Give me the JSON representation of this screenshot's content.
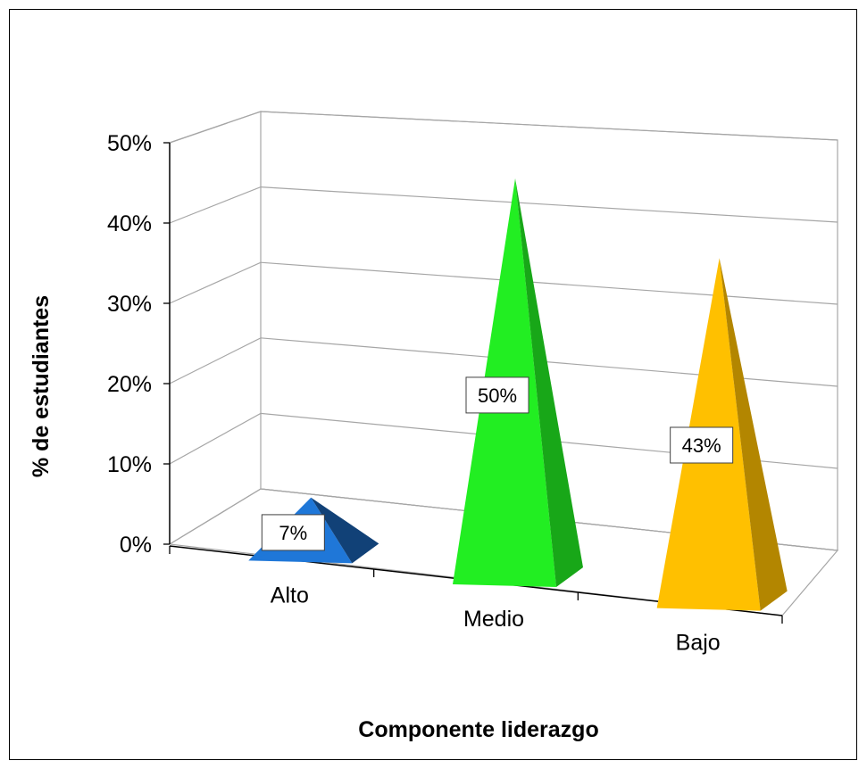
{
  "chart_data": {
    "type": "bar",
    "style": "3d-pyramid",
    "categories": [
      "Alto",
      "Medio",
      "Bajo"
    ],
    "values": [
      7,
      50,
      43
    ],
    "data_labels": [
      "7%",
      "50%",
      "43%"
    ],
    "colors": [
      "#1f77d8",
      "#22ee22",
      "#ffc000"
    ],
    "xlabel": "Componente  liderazgo",
    "ylabel": "% de estudiantes",
    "ylim": [
      0,
      50
    ],
    "yticks": [
      0,
      10,
      20,
      30,
      40,
      50
    ],
    "ytick_labels": [
      "0%",
      "10%",
      "20%",
      "30%",
      "40%",
      "50%"
    ],
    "grid": true,
    "legend": "none"
  }
}
